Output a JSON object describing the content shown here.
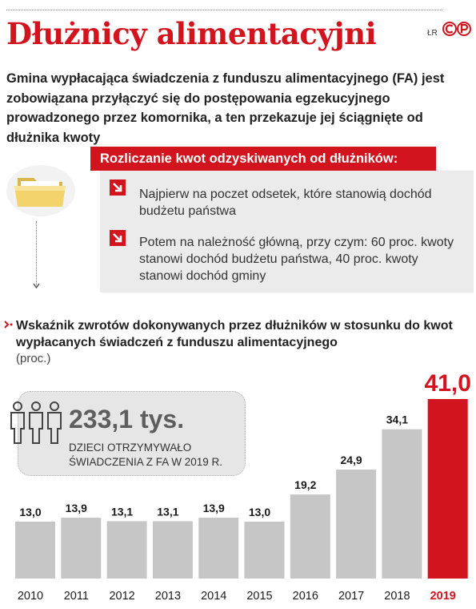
{
  "header": {
    "title": "Dłużnicy alimentacyjni",
    "credit": "ŁR"
  },
  "intro": "Gmina wypłacająca świadczenia z funduszu alimentacyjnego (FA) jest zobowiązana przyłączyć się do postępowania egzekucyjnego prowadzonego przez komornika, a ten przekazuje jej ściągnięte od dłużnika kwoty",
  "settlement": {
    "header": "Rozliczanie kwot odzyskiwanych od dłużników:",
    "rules": [
      "Najpierw na poczet odsetek, które stanowią dochód budżetu państwa",
      "Potem na należność główną, przy czym: 60 proc. kwoty stanowi dochód budżetu państwa, 40 proc. kwoty stanowi dochód gminy"
    ]
  },
  "callout": {
    "value": "233,1 tys.",
    "label": "DZIECI OTRZYMYWAŁO ŚWIADCZENIA Z FA W 2019 R."
  },
  "colors": {
    "accent": "#d2141e",
    "bar": "#c6c6c6",
    "box": "#ebebeb"
  },
  "chart_data": {
    "type": "bar",
    "title": "Wskaźnik zwrotów dokonywanych przez dłużników w stosunku do kwot wypłacanych świadczeń z funduszu alimentacyjnego",
    "unit": "(proc.)",
    "categories": [
      "2010",
      "2011",
      "2012",
      "2013",
      "2014",
      "2015",
      "2016",
      "2017",
      "2018",
      "2019"
    ],
    "values": [
      13.0,
      13.9,
      13.1,
      13.1,
      13.9,
      13.0,
      19.2,
      24.9,
      34.1,
      41.0
    ],
    "value_labels": [
      "13,0",
      "13,9",
      "13,1",
      "13,1",
      "13,9",
      "13,0",
      "19,2",
      "24,9",
      "34,1",
      "41,0"
    ],
    "highlight_index": 9,
    "grid": false,
    "ylim": [
      0,
      41.0
    ]
  }
}
